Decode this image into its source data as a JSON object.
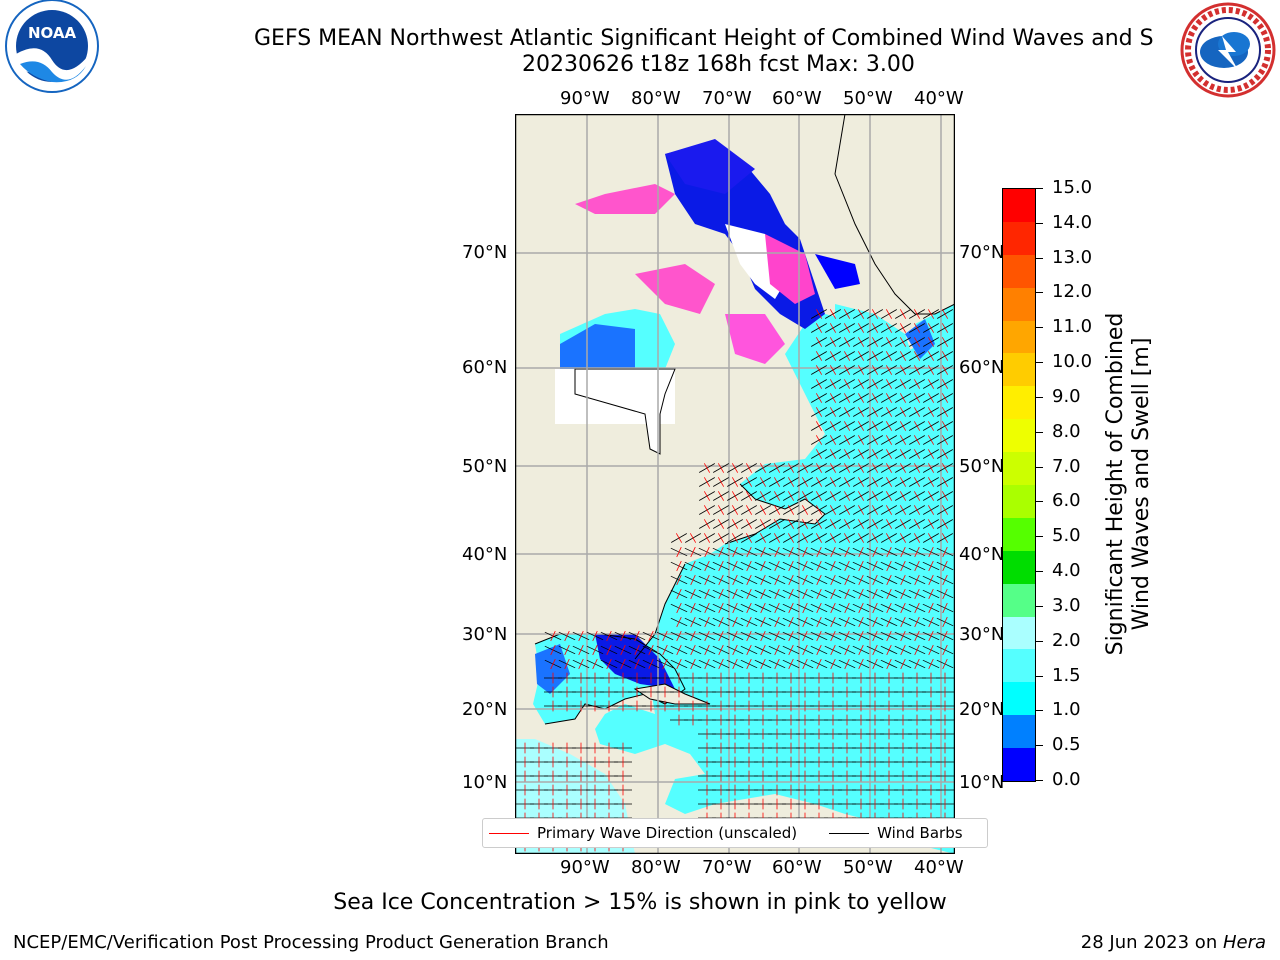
{
  "title": {
    "line1": "GEFS MEAN Northwest Atlantic Significant Height of Combined Wind Waves and S",
    "line2": "20230626 t18z 168h fcst   Max: 3.00"
  },
  "logos": {
    "left": {
      "name": "noaa-logo",
      "text": "NOAA",
      "ring_text": "NATIONAL OCEANIC AND ATMOSPHERIC ADMINISTRATION",
      "color": "#1565c0"
    },
    "right": {
      "name": "nws-logo",
      "ring_text": "NATIONAL WEATHER SERVICE",
      "color": "#d32f2f"
    }
  },
  "map": {
    "lon_ticks": [
      "90°W",
      "80°W",
      "70°W",
      "60°W",
      "50°W",
      "40°W"
    ],
    "lat_ticks": [
      "70°N",
      "60°N",
      "50°N",
      "40°N",
      "30°N",
      "20°N",
      "10°N"
    ],
    "land_color": "#efeddd",
    "water_color": "#55ffff",
    "legend": {
      "wave": {
        "label": "Primary Wave Direction (unscaled)",
        "color": "#ff0000"
      },
      "wind": {
        "label": "Wind Barbs",
        "color": "#000000"
      }
    }
  },
  "colorbar": {
    "label_line1": "Significant Height of Combined",
    "label_line2": "Wind Waves and Swell [m]",
    "ticks": [
      "15.0",
      "14.0",
      "13.0",
      "12.0",
      "11.0",
      "10.0",
      "9.0",
      "8.0",
      "7.0",
      "6.0",
      "5.0",
      "4.0",
      "3.0",
      "2.0",
      "1.5",
      "1.0",
      "0.5",
      "0.0"
    ],
    "colors_top_to_bottom": [
      "#ff0000",
      "#ff2600",
      "#ff5500",
      "#ff8000",
      "#ffa600",
      "#ffcc00",
      "#ffee00",
      "#eeff00",
      "#ccff00",
      "#aaff00",
      "#55ff00",
      "#00dd00",
      "#55ff88",
      "#aaffff",
      "#55ffff",
      "#00ffff",
      "#0080ff",
      "#0000ff"
    ]
  },
  "note": "Sea Ice Concentration > 15% is shown in pink to yellow",
  "footer": {
    "left": "NCEP/EMC/Verification Post Processing Product Generation Branch",
    "date": "28 Jun 2023 on ",
    "machine": "Hera"
  }
}
